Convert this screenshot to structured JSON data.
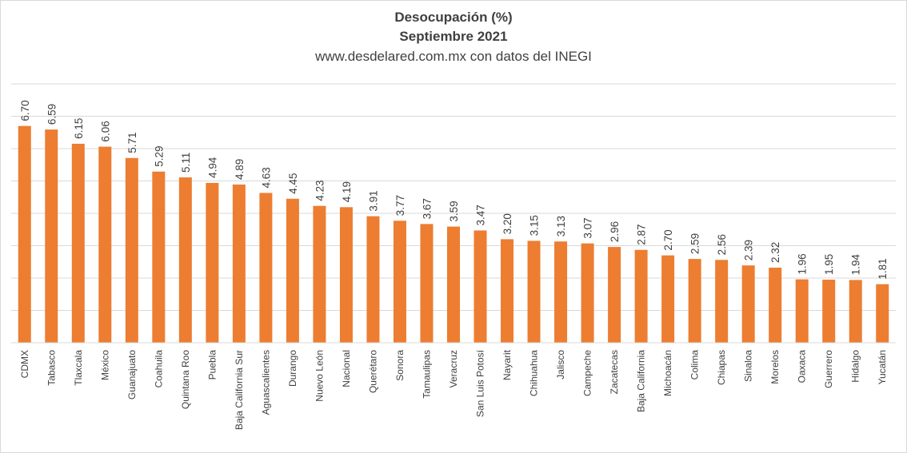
{
  "chart_data": {
    "type": "bar",
    "title": "Desocupación  (%)",
    "subtitle": "Septiembre 2021",
    "source": "www.desdelared.com.mx  con datos del INEGI",
    "categories": [
      "CDMX",
      "Tabasco",
      "Tlaxcala",
      "México",
      "Guanajuato",
      "Coahuila",
      "Quintana Roo",
      "Puebla",
      "Baja California Sur",
      "Aguascalientes",
      "Durango",
      "Nuevo León",
      "Nacional",
      "Querétaro",
      "Sonora",
      "Tamaulipas",
      "Veracruz",
      "San Luis Potosí",
      "Nayarit",
      "Chihuahua",
      "Jalisco",
      "Campeche",
      "Zacatecas",
      "Baja California",
      "Michoacán",
      "Colima",
      "Chiapas",
      "Sinaloa",
      "Morelos",
      "Oaxaca",
      "Guerrero",
      "Hidalgo",
      "Yucatán"
    ],
    "values": [
      6.7,
      6.59,
      6.15,
      6.06,
      5.71,
      5.29,
      5.11,
      4.94,
      4.89,
      4.63,
      4.45,
      4.23,
      4.19,
      3.91,
      3.77,
      3.67,
      3.59,
      3.47,
      3.2,
      3.15,
      3.13,
      3.07,
      2.96,
      2.87,
      2.7,
      2.59,
      2.56,
      2.39,
      2.32,
      1.96,
      1.95,
      1.94,
      1.81
    ],
    "data_labels": [
      "6.70",
      "6.59",
      "6.15",
      "6.06",
      "5.71",
      "5.29",
      "5.11",
      "4.94",
      "4.89",
      "4.63",
      "4.45",
      "4.23",
      "4.19",
      "3.91",
      "3.77",
      "3.67",
      "3.59",
      "3.47",
      "3.20",
      "3.15",
      "3.13",
      "3.07",
      "2.96",
      "2.87",
      "2.70",
      "2.59",
      "2.56",
      "2.39",
      "2.32",
      "1.96",
      "1.95",
      "1.94",
      "1.81"
    ],
    "ylim": [
      0,
      8
    ],
    "grid": true,
    "bar_color": "#ed7d31",
    "grid_color": "#d9d9d9",
    "text_color": "#404040"
  }
}
